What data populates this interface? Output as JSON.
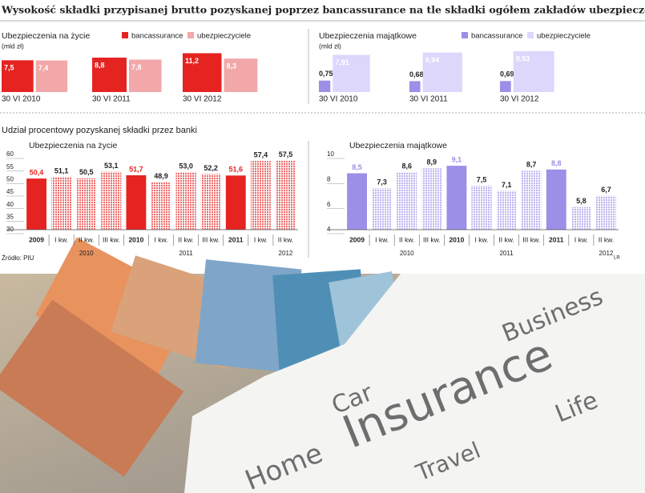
{
  "title": "Wysokość składki przypisanej brutto pozyskanej poprzez bancassurance na tle składki ogółem zakładów ubezpieczeń",
  "chart_data": [
    {
      "type": "square",
      "title": "Ubezpieczenia na życie",
      "unit": "(mld zł)",
      "categories": [
        "30 VI 2010",
        "30 VI 2011",
        "30 VI 2012"
      ],
      "series": [
        {
          "name": "bancassurance",
          "color": "#e52421",
          "values": [
            7.5,
            8.8,
            11.2
          ],
          "value_labels": [
            "7,5",
            "8,8",
            "11,2"
          ]
        },
        {
          "name": "ubezpieczyciele",
          "color": "#f2a7a9",
          "values": [
            7.4,
            7.8,
            8.3
          ],
          "value_labels": [
            "7,4",
            "7,8",
            "8,3"
          ]
        }
      ]
    },
    {
      "type": "square",
      "title": "Ubezpieczenia majątkowe",
      "unit": "(mld zł)",
      "categories": [
        "30 VI 2010",
        "30 VI 2011",
        "30 VI 2012"
      ],
      "series": [
        {
          "name": "bancassurance",
          "color": "#9b8fe8",
          "values": [
            0.75,
            0.68,
            0.69
          ],
          "value_labels": [
            "0,75",
            "0,68",
            "0,69"
          ]
        },
        {
          "name": "ubezpieczyciele",
          "color": "#dcd7fb",
          "values": [
            7.91,
            8.94,
            9.53
          ],
          "value_labels": [
            "7,91",
            "8,94",
            "9.53"
          ]
        }
      ]
    },
    {
      "type": "bar",
      "title": "Ubezpieczenia na życie",
      "categories": [
        "2009",
        "I kw.",
        "II kw.",
        "III kw.",
        "2010",
        "I kw.",
        "II kw.",
        "III kw.",
        "2011",
        "I kw.",
        "II kw."
      ],
      "values": [
        50.4,
        51.1,
        50.5,
        53.1,
        51.7,
        48.9,
        53.0,
        52.2,
        51.6,
        57.4,
        57.5
      ],
      "value_labels": [
        "50,4",
        "51,1",
        "50,5",
        "53,1",
        "51,7",
        "48,9",
        "53,0",
        "52,2",
        "51,6",
        "57,4",
        "57,5"
      ],
      "groups": [
        "2010",
        "2011",
        "2012"
      ],
      "color": "#e52421",
      "ylim": [
        30,
        60
      ],
      "yticks": [
        30,
        35,
        40,
        45,
        50,
        55,
        60
      ]
    },
    {
      "type": "bar",
      "title": "Ubezpieczenia majątkowe",
      "categories": [
        "2009",
        "I kw.",
        "II kw.",
        "III kw.",
        "2010",
        "I kw.",
        "II kw.",
        "III kw.",
        "2011",
        "I kw.",
        "II kw."
      ],
      "values": [
        8.5,
        7.3,
        8.6,
        8.9,
        9.1,
        7.5,
        7.1,
        8.7,
        8.8,
        5.8,
        6.7
      ],
      "value_labels": [
        "8,5",
        "7,3",
        "8,6",
        "8,9",
        "9,1",
        "7,5",
        "7,1",
        "8,7",
        "8,8",
        "5,8",
        "6,7"
      ],
      "groups": [
        "2010",
        "2011",
        "2012"
      ],
      "color": "#9b8fe8",
      "ylim": [
        4,
        10
      ],
      "yticks": [
        4,
        6,
        8,
        10
      ]
    }
  ],
  "section_title": "Udział procentowy pozyskanej składki przez banki",
  "source": "Źródło: PIU",
  "credit": "LR",
  "photo": {
    "words": [
      "Business",
      "Car",
      "Insurance",
      "Travel",
      "Life",
      "Home"
    ]
  }
}
